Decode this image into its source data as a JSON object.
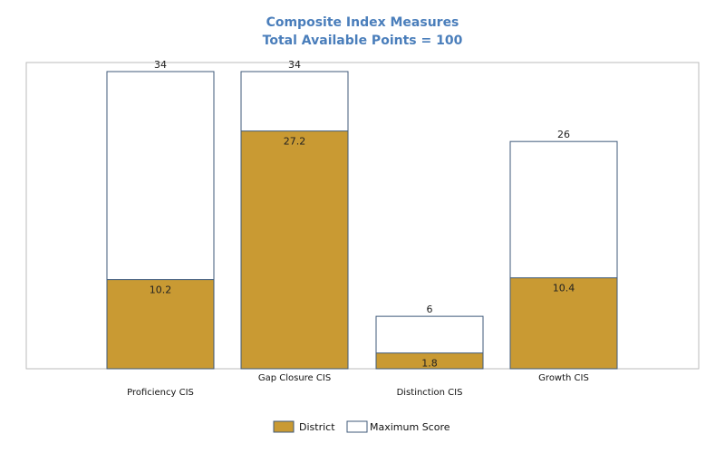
{
  "chart_data": {
    "type": "bar",
    "title": "Composite Index Measures",
    "subtitle": "Total Available Points = 100",
    "categories": [
      "Proficiency CIS",
      "Gap Closure CIS",
      "Distinction CIS",
      "Growth CIS"
    ],
    "series": [
      {
        "name": "District",
        "values": [
          10.2,
          27.2,
          1.8,
          10.4
        ],
        "color": "#C99A33"
      },
      {
        "name": "Maximum Score",
        "values": [
          34,
          34,
          6,
          26
        ],
        "color": "#FFFFFF"
      }
    ],
    "value_labels": {
      "District": [
        "10.2",
        "27.2",
        "1.8",
        "10.4"
      ],
      "Maximum Score": [
        "34",
        "34",
        "6",
        "26"
      ]
    },
    "ylim": [
      0,
      34
    ],
    "grid": false,
    "legend_position": "bottom",
    "colors": {
      "title": "#4A7EBB",
      "bar_outline": "#3F5A7A",
      "frame": "#BBBBBB"
    }
  }
}
